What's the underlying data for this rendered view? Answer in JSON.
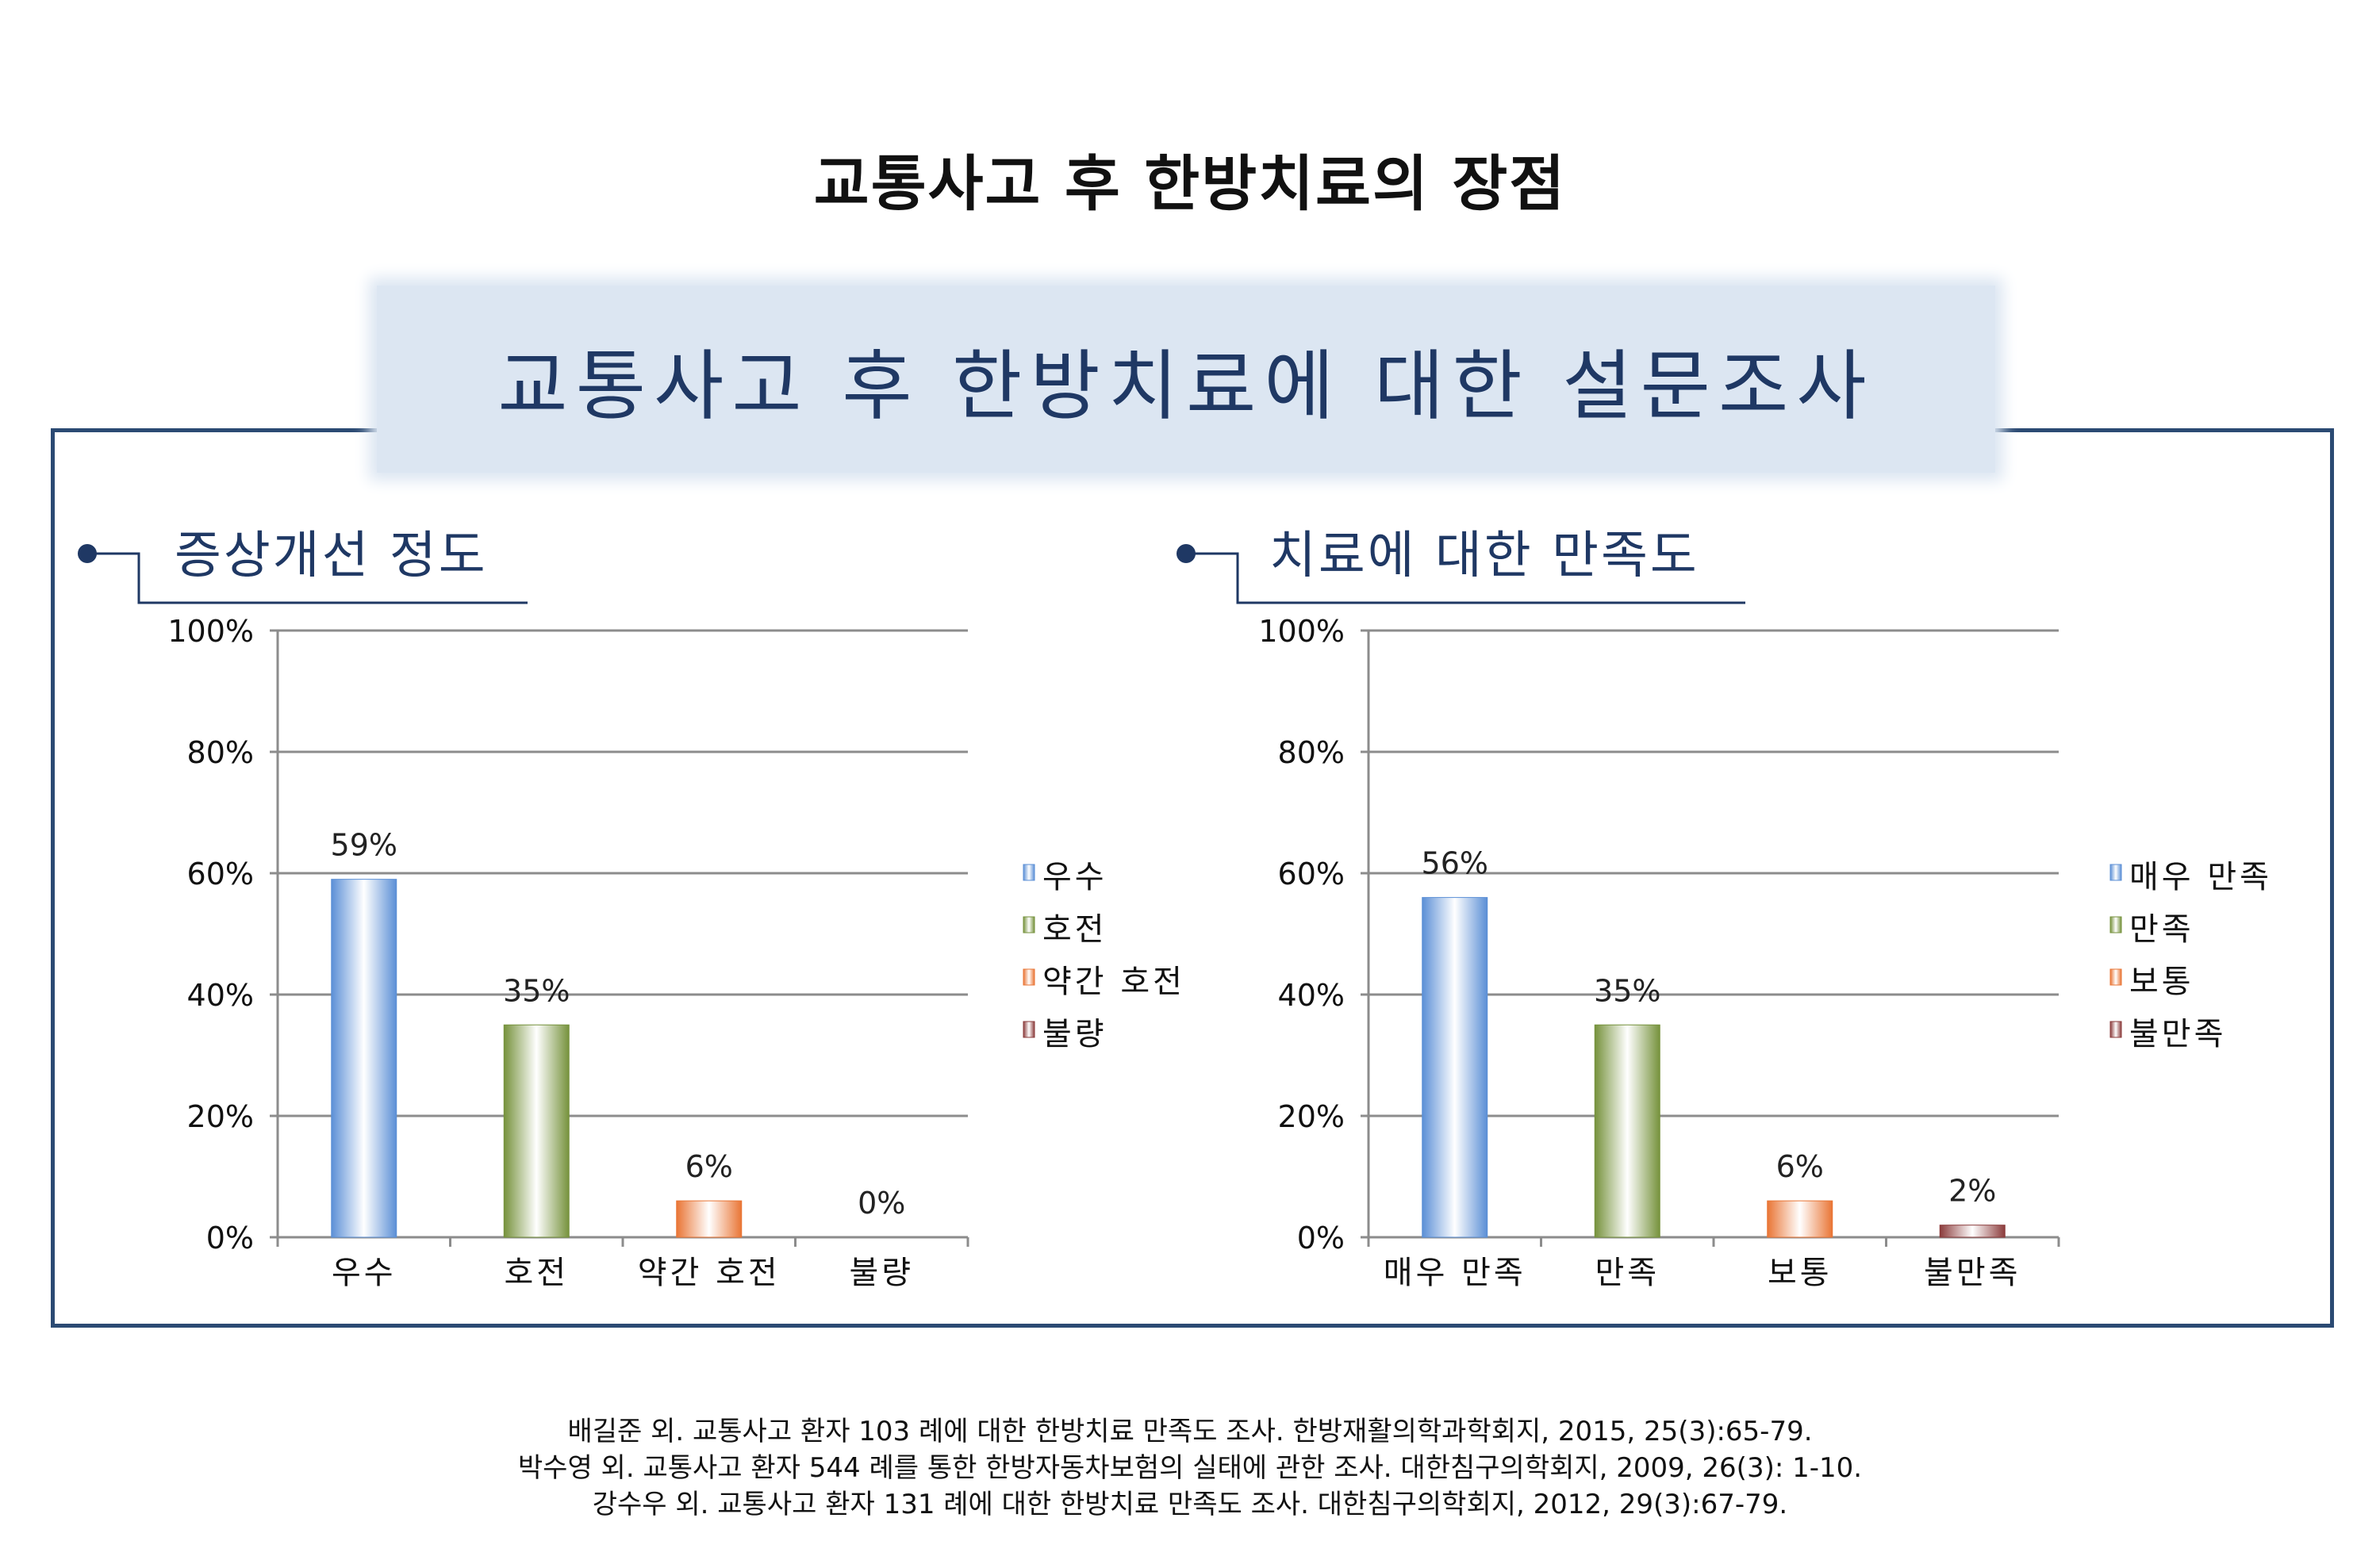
{
  "title": "교통사고 후 한방치료의 장점",
  "banner": "교통사고 후 한방치료에 대한 설문조사",
  "colors": {
    "frame": "#2b4a73",
    "banner_bg": "#dce6f2",
    "banner_text": "#1f3864",
    "series": [
      "#5b8fd6",
      "#76923c",
      "#e97535",
      "#8b3b3b"
    ]
  },
  "chart_data": [
    {
      "type": "bar",
      "title": "증상개선 정도",
      "categories": [
        "우수",
        "호전",
        "약간 호전",
        "불량"
      ],
      "values": [
        59,
        35,
        6,
        0
      ],
      "value_labels": [
        "59%",
        "35%",
        "6%",
        "0%"
      ],
      "ylim": [
        0,
        100
      ],
      "yticks": [
        "0%",
        "20%",
        "40%",
        "60%",
        "80%",
        "100%"
      ],
      "legend": [
        "우수",
        "호전",
        "약간 호전",
        "불량"
      ],
      "legend_position": "right",
      "grid": true
    },
    {
      "type": "bar",
      "title": "치료에 대한 만족도",
      "categories": [
        "매우 만족",
        "만족",
        "보통",
        "불만족"
      ],
      "values": [
        56,
        35,
        6,
        2
      ],
      "value_labels": [
        "56%",
        "35%",
        "6%",
        "2%"
      ],
      "ylim": [
        0,
        100
      ],
      "yticks": [
        "0%",
        "20%",
        "40%",
        "60%",
        "80%",
        "100%"
      ],
      "legend": [
        "매우 만족",
        "만족",
        "보통",
        "불만족"
      ],
      "legend_position": "right",
      "grid": true
    }
  ],
  "references": [
    "배길준 외. 교통사고 환자 103 례에 대한 한방치료 만족도 조사. 한방재활의학과학회지, 2015, 25(3):65-79.",
    "박수영 외. 교통사고 환자 544 례를 통한 한방자동차보험의 실태에 관한 조사. 대한침구의학회지, 2009, 26(3): 1-10.",
    "강수우 외. 교통사고 환자 131 례에 대한 한방치료 만족도 조사. 대한침구의학회지, 2012, 29(3):67-79."
  ]
}
